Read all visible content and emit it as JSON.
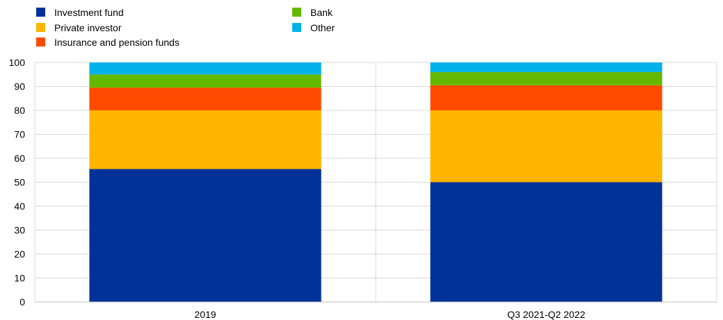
{
  "chart_data": {
    "type": "bar",
    "stacked": true,
    "categories": [
      "2019",
      "Q3 2021-Q2 2022"
    ],
    "series": [
      {
        "name": "Investment fund",
        "color": "#003299",
        "values": [
          55.5,
          50
        ]
      },
      {
        "name": "Private investor",
        "color": "#FFB400",
        "values": [
          24.5,
          30
        ]
      },
      {
        "name": "Insurance and pension funds",
        "color": "#FF4B00",
        "values": [
          9.5,
          10.5
        ]
      },
      {
        "name": "Bank",
        "color": "#65B800",
        "values": [
          5.5,
          5.5
        ]
      },
      {
        "name": "Other",
        "color": "#00B1EA",
        "values": [
          5,
          4
        ]
      }
    ],
    "ylim": [
      0,
      100
    ],
    "yticks": [
      "0",
      "10",
      "20",
      "30",
      "40",
      "50",
      "60",
      "70",
      "80",
      "90",
      "100"
    ],
    "grid": true,
    "legend_position": "top-left"
  }
}
